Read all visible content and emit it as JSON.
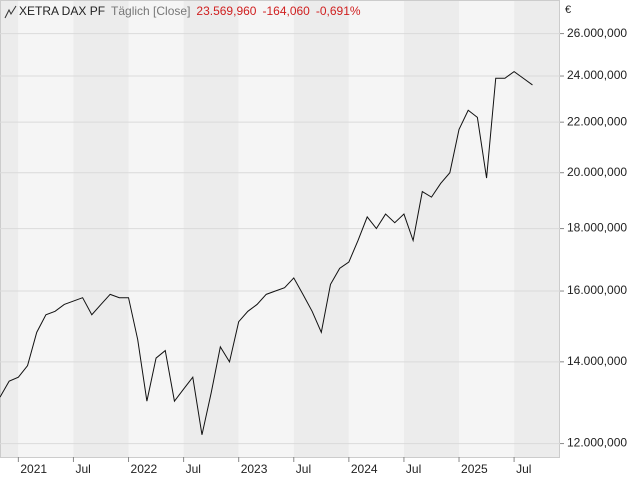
{
  "chart_data": {
    "type": "line",
    "title": "XETRA DAX PF",
    "subtitle": "Täglich [Close]",
    "annotations": [
      "23.569,960",
      "-164,060",
      "-0,691%"
    ],
    "y_unit": "€",
    "color": "#111111",
    "log_scale": true,
    "grid": true,
    "x": [
      "2020-11",
      "2020-12",
      "2021-01",
      "2021-02",
      "2021-03",
      "2021-04",
      "2021-05",
      "2021-06",
      "2021-07",
      "2021-08",
      "2021-09",
      "2021-10",
      "2021-11",
      "2021-12",
      "2022-01",
      "2022-02",
      "2022-03",
      "2022-04",
      "2022-05",
      "2022-06",
      "2022-07",
      "2022-08",
      "2022-09",
      "2022-10",
      "2022-11",
      "2022-12",
      "2023-01",
      "2023-02",
      "2023-03",
      "2023-04",
      "2023-05",
      "2023-06",
      "2023-07",
      "2023-08",
      "2023-09",
      "2023-10",
      "2023-11",
      "2023-12",
      "2024-01",
      "2024-02",
      "2024-03",
      "2024-04",
      "2024-05",
      "2024-06",
      "2024-07",
      "2024-08",
      "2024-09",
      "2024-10",
      "2024-11",
      "2024-12",
      "2025-01",
      "2025-02",
      "2025-03",
      "2025-04",
      "2025-05",
      "2025-06",
      "2025-07",
      "2025-08",
      "2025-09"
    ],
    "values": [
      13100,
      13500,
      13600,
      13900,
      14800,
      15300,
      15400,
      15600,
      15700,
      15800,
      15300,
      15600,
      15900,
      15800,
      15800,
      14600,
      13000,
      14100,
      14300,
      13000,
      13300,
      13600,
      12200,
      13200,
      14400,
      14000,
      15100,
      15400,
      15600,
      15900,
      16000,
      16100,
      16400,
      15900,
      15400,
      14800,
      16200,
      16700,
      16900,
      17600,
      18400,
      18000,
      18500,
      18200,
      18500,
      17600,
      19300,
      19100,
      19600,
      20000,
      21700,
      22500,
      22200,
      19800,
      23900,
      23900,
      24200,
      23900,
      23600
    ],
    "xlim": [
      "2020-11",
      "2025-12"
    ],
    "xticks": [
      {
        "value": "2021-01",
        "label": "2021"
      },
      {
        "value": "2021-07",
        "label": "Jul"
      },
      {
        "value": "2022-01",
        "label": "2022"
      },
      {
        "value": "2022-07",
        "label": "Jul"
      },
      {
        "value": "2023-01",
        "label": "2023"
      },
      {
        "value": "2023-07",
        "label": "Jul"
      },
      {
        "value": "2024-01",
        "label": "2024"
      },
      {
        "value": "2024-07",
        "label": "Jul"
      },
      {
        "value": "2025-01",
        "label": "2025"
      },
      {
        "value": "2025-07",
        "label": "Jul"
      }
    ],
    "ylim": [
      11700,
      27700
    ],
    "yticks": [
      {
        "value": 12000,
        "label": "12.000,000"
      },
      {
        "value": 14000,
        "label": "14.000,000"
      },
      {
        "value": 16000,
        "label": "16.000,000"
      },
      {
        "value": 18000,
        "label": "18.000,000"
      },
      {
        "value": 20000,
        "label": "20.000,000"
      },
      {
        "value": 22000,
        "label": "22.000,000"
      },
      {
        "value": 24000,
        "label": "24.000,000"
      },
      {
        "value": 26000,
        "label": "26.000,000"
      }
    ]
  }
}
